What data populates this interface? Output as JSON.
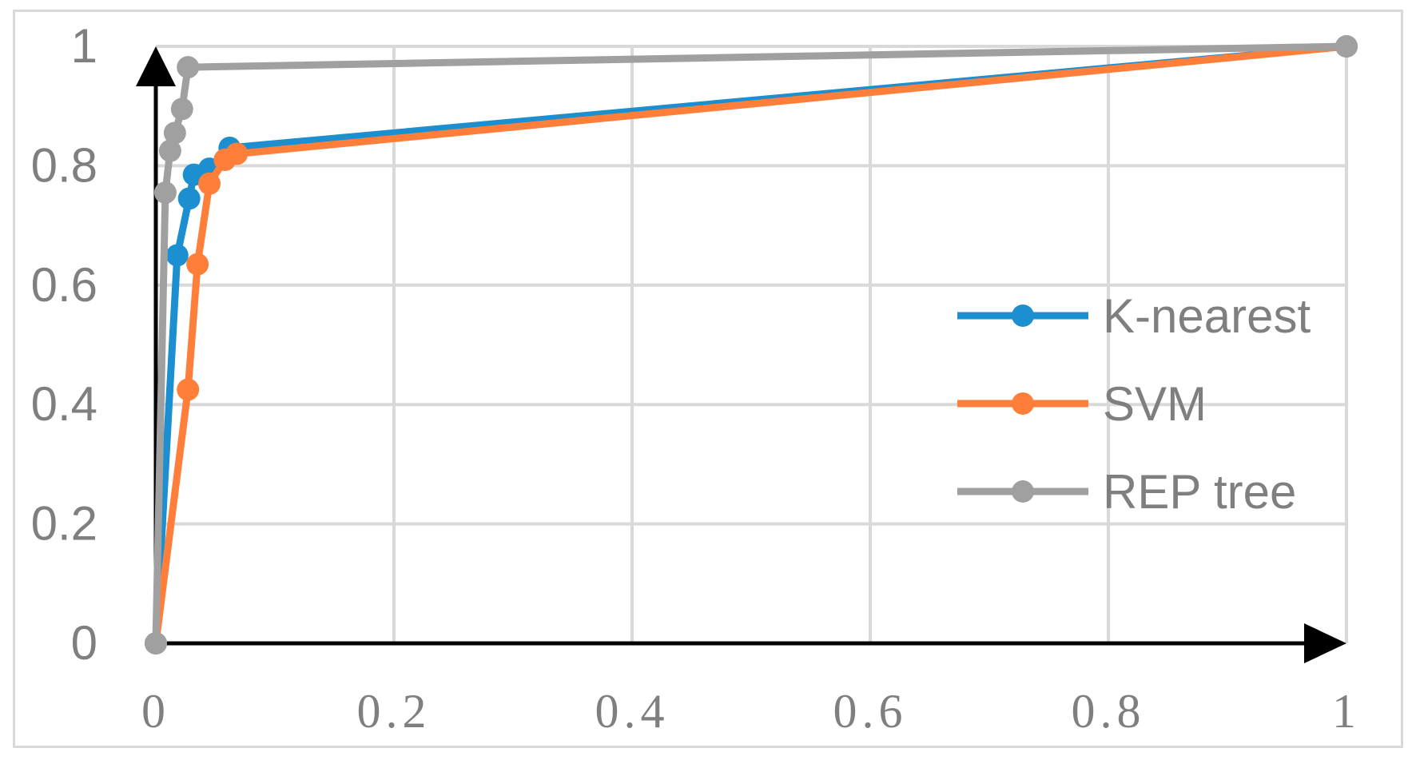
{
  "chart_data": {
    "type": "line",
    "title": "",
    "xlabel": "",
    "ylabel": "",
    "xlim": [
      0,
      1
    ],
    "ylim": [
      0,
      1
    ],
    "grid": true,
    "legend_position": "right",
    "x_ticks": [
      "0",
      "0.2",
      "0.4",
      "0.6",
      "0.8",
      "1"
    ],
    "y_ticks": [
      "0",
      "0.2",
      "0.4",
      "0.6",
      "0.8",
      "1"
    ],
    "series": [
      {
        "name": "K-nearest",
        "color": "#1b8fcf",
        "points": [
          [
            0,
            0
          ],
          [
            0.018,
            0.65
          ],
          [
            0.028,
            0.745
          ],
          [
            0.032,
            0.785
          ],
          [
            0.045,
            0.795
          ],
          [
            0.058,
            0.81
          ],
          [
            0.062,
            0.83
          ],
          [
            1,
            1
          ]
        ]
      },
      {
        "name": "SVM",
        "color": "#ff7f3a",
        "points": [
          [
            0,
            0
          ],
          [
            0.027,
            0.425
          ],
          [
            0.035,
            0.635
          ],
          [
            0.045,
            0.77
          ],
          [
            0.058,
            0.81
          ],
          [
            0.068,
            0.82
          ],
          [
            1,
            1
          ]
        ]
      },
      {
        "name": "REP tree",
        "color": "#a0a0a0",
        "points": [
          [
            0,
            0
          ],
          [
            0.008,
            0.755
          ],
          [
            0.012,
            0.825
          ],
          [
            0.016,
            0.855
          ],
          [
            0.022,
            0.895
          ],
          [
            0.027,
            0.965
          ],
          [
            1,
            1
          ]
        ]
      }
    ]
  }
}
